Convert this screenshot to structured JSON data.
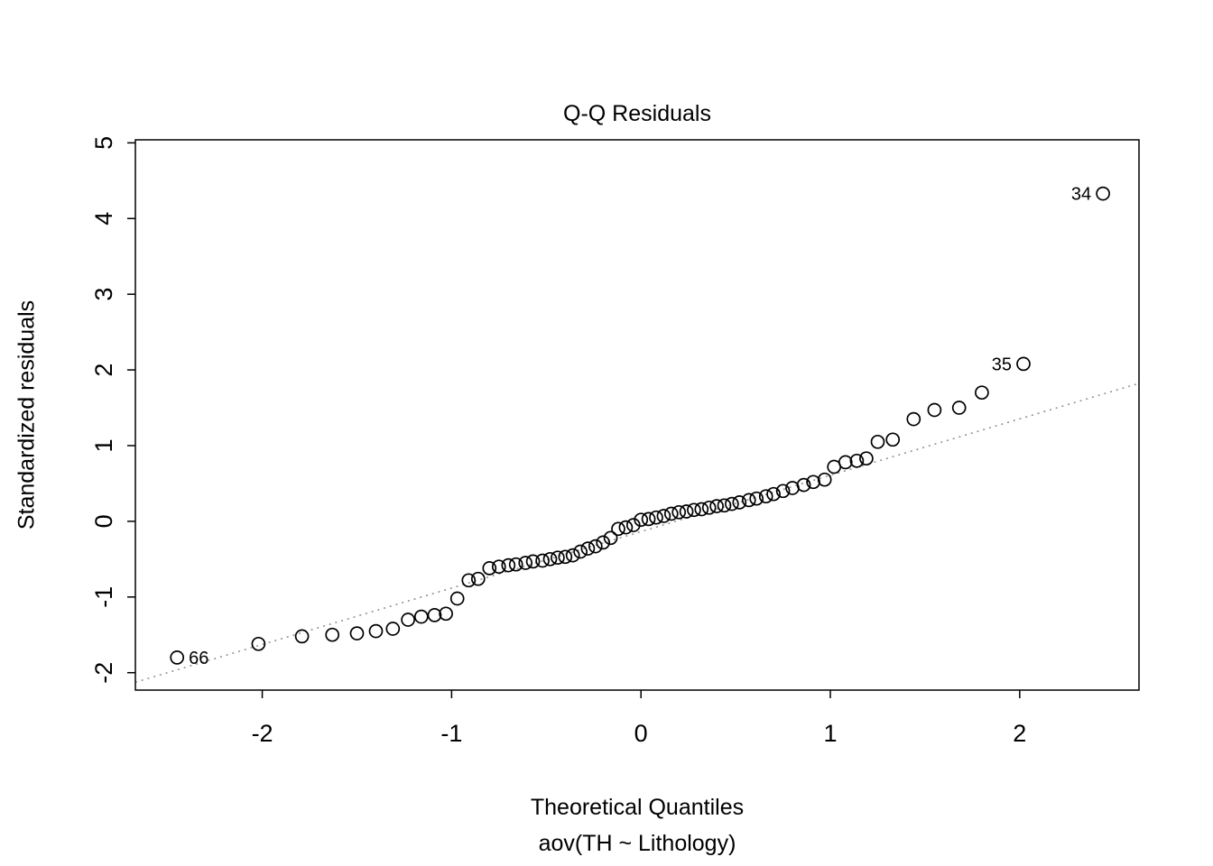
{
  "page": {
    "background": "#ffffff"
  },
  "chart_data": {
    "type": "scatter",
    "title": "Q-Q Residuals",
    "xlabel": "Theoretical Quantiles",
    "xlabel2": "aov(TH ~ Lithology)",
    "ylabel": "Standardized residuals",
    "xlim": [
      -2.67,
      2.63
    ],
    "ylim": [
      -2.23,
      5.04
    ],
    "xticks": [
      -2,
      -1,
      0,
      1,
      2
    ],
    "yticks": [
      -2,
      -1,
      0,
      1,
      2,
      3,
      4,
      5
    ],
    "grid": false,
    "legend": "none",
    "reference_line": {
      "slope": 0.745,
      "intercept": -0.137,
      "style": "dotted",
      "color": "#8c8c8c"
    },
    "marker": {
      "shape": "open-circle",
      "radius": 7,
      "color": "#000000"
    },
    "points": [
      [
        -2.45,
        -1.8
      ],
      [
        -2.02,
        -1.62
      ],
      [
        -1.79,
        -1.52
      ],
      [
        -1.63,
        -1.5
      ],
      [
        -1.5,
        -1.48
      ],
      [
        -1.4,
        -1.45
      ],
      [
        -1.31,
        -1.42
      ],
      [
        -1.23,
        -1.3
      ],
      [
        -1.16,
        -1.26
      ],
      [
        -1.09,
        -1.24
      ],
      [
        -1.03,
        -1.22
      ],
      [
        -0.97,
        -1.02
      ],
      [
        -0.91,
        -0.78
      ],
      [
        -0.86,
        -0.76
      ],
      [
        -0.8,
        -0.62
      ],
      [
        -0.75,
        -0.6
      ],
      [
        -0.7,
        -0.58
      ],
      [
        -0.66,
        -0.57
      ],
      [
        -0.61,
        -0.55
      ],
      [
        -0.57,
        -0.53
      ],
      [
        -0.52,
        -0.52
      ],
      [
        -0.48,
        -0.5
      ],
      [
        -0.44,
        -0.48
      ],
      [
        -0.4,
        -0.47
      ],
      [
        -0.36,
        -0.45
      ],
      [
        -0.32,
        -0.4
      ],
      [
        -0.28,
        -0.36
      ],
      [
        -0.24,
        -0.33
      ],
      [
        -0.2,
        -0.28
      ],
      [
        -0.16,
        -0.22
      ],
      [
        -0.12,
        -0.1
      ],
      [
        -0.08,
        -0.08
      ],
      [
        -0.04,
        -0.05
      ],
      [
        0.0,
        0.02
      ],
      [
        0.04,
        0.03
      ],
      [
        0.08,
        0.05
      ],
      [
        0.12,
        0.07
      ],
      [
        0.16,
        0.1
      ],
      [
        0.2,
        0.12
      ],
      [
        0.24,
        0.13
      ],
      [
        0.28,
        0.15
      ],
      [
        0.32,
        0.16
      ],
      [
        0.36,
        0.18
      ],
      [
        0.4,
        0.2
      ],
      [
        0.44,
        0.21
      ],
      [
        0.48,
        0.23
      ],
      [
        0.52,
        0.25
      ],
      [
        0.57,
        0.28
      ],
      [
        0.61,
        0.3
      ],
      [
        0.66,
        0.33
      ],
      [
        0.7,
        0.36
      ],
      [
        0.75,
        0.4
      ],
      [
        0.8,
        0.44
      ],
      [
        0.86,
        0.48
      ],
      [
        0.91,
        0.52
      ],
      [
        0.97,
        0.55
      ],
      [
        1.02,
        0.72
      ],
      [
        1.08,
        0.78
      ],
      [
        1.14,
        0.8
      ],
      [
        1.19,
        0.83
      ],
      [
        1.25,
        1.05
      ],
      [
        1.33,
        1.08
      ],
      [
        1.44,
        1.35
      ],
      [
        1.55,
        1.47
      ],
      [
        1.68,
        1.5
      ],
      [
        1.8,
        1.7
      ],
      [
        2.02,
        2.08
      ],
      [
        2.44,
        4.33
      ]
    ],
    "point_labels": [
      {
        "text": "34",
        "x": 2.44,
        "y": 4.33,
        "side": "left"
      },
      {
        "text": "35",
        "x": 2.02,
        "y": 2.08,
        "side": "left"
      },
      {
        "text": "66",
        "x": -2.45,
        "y": -1.8,
        "side": "right"
      }
    ]
  }
}
